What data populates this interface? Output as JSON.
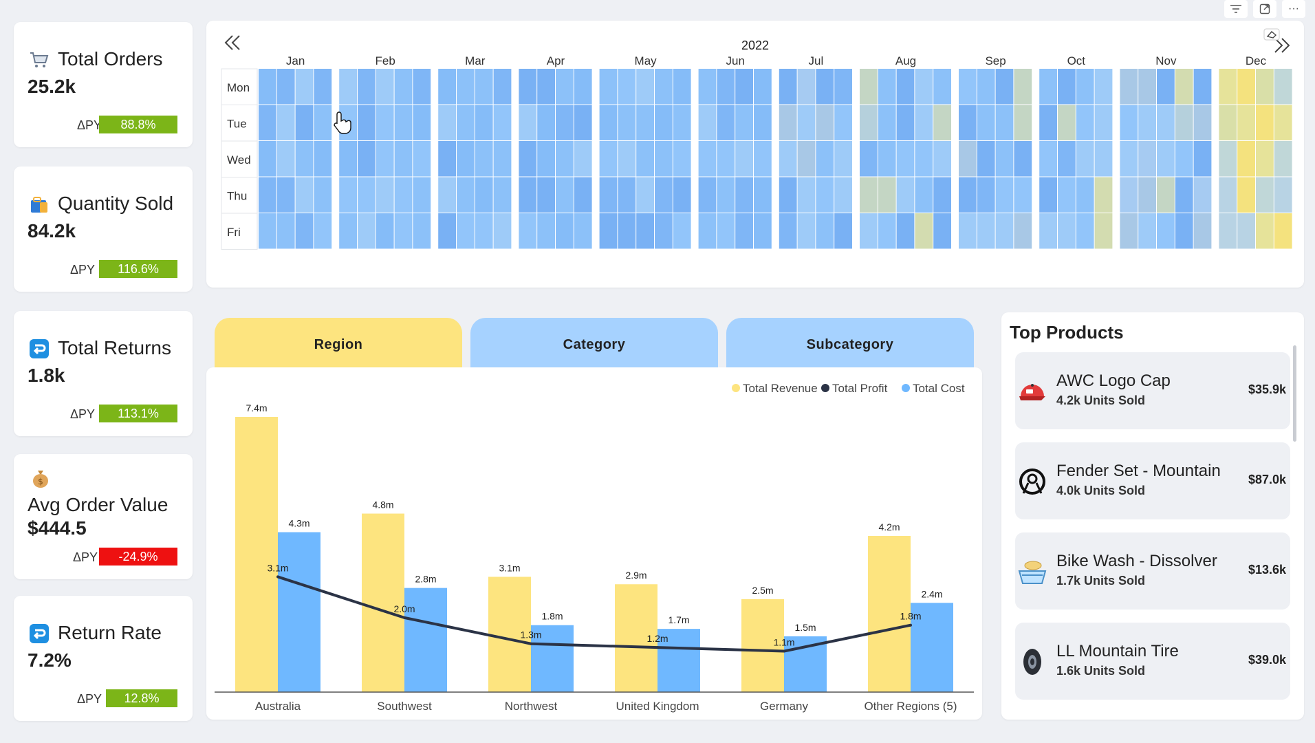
{
  "colors": {
    "revenue": "#fde47f",
    "profit": "#2b3346",
    "cost": "#6fb8ff",
    "pos": "#7cb518",
    "neg": "#ee1111",
    "tab_active": "#fde47f",
    "tab_inactive": "#a6d2ff"
  },
  "toolbar": {
    "filter_icon": "filter-icon",
    "expand_icon": "expand-icon",
    "more_icon": "more-icon"
  },
  "kpis": [
    {
      "title": "Total Orders",
      "value": "25.2k",
      "delta_label": "ΔPY",
      "delta": "88.8%",
      "trend": "pos",
      "icon": "cart-icon"
    },
    {
      "title": "Quantity Sold",
      "value": "84.2k",
      "delta_label": "ΔPY",
      "delta": "116.6%",
      "trend": "pos",
      "icon": "shopping-bag-icon"
    },
    {
      "title": "Total Returns",
      "value": "1.8k",
      "delta_label": "ΔPY",
      "delta": "113.1%",
      "trend": "pos",
      "icon": "return-icon"
    },
    {
      "title": "Avg Order Value",
      "value": "$444.5",
      "delta_label": "ΔPY",
      "delta": "-24.9%",
      "trend": "neg",
      "icon": "money-bag-icon"
    },
    {
      "title": "Return Rate",
      "value": "7.2%",
      "delta_label": "ΔPY",
      "delta": "12.8%",
      "trend": "pos",
      "icon": "return-icon"
    }
  ],
  "calendar": {
    "year": "2022",
    "prev_icon": "double-chevron-left-icon",
    "next_icon": "double-chevron-right-icon",
    "eraser_icon": "eraser-icon",
    "months": [
      "Jan",
      "Feb",
      "Mar",
      "Apr",
      "May",
      "Jun",
      "Jul",
      "Aug",
      "Sep",
      "Oct",
      "Nov",
      "Dec"
    ],
    "weeks_per_month": [
      4,
      5,
      4,
      4,
      5,
      4,
      4,
      5,
      4,
      4,
      5,
      4
    ],
    "days": [
      "Mon",
      "Tue",
      "Wed",
      "Thu",
      "Fri"
    ]
  },
  "tabs": [
    {
      "label": "Region",
      "active": true
    },
    {
      "label": "Category",
      "active": false
    },
    {
      "label": "Subcategory",
      "active": false
    }
  ],
  "chart_data": {
    "type": "bar",
    "categories": [
      "Australia",
      "Southwest",
      "Northwest",
      "United Kingdom",
      "Germany",
      "Other Regions (5)"
    ],
    "series": [
      {
        "name": "Total Revenue",
        "type": "bar",
        "values": [
          7.4,
          4.8,
          3.1,
          2.9,
          2.5,
          4.2
        ],
        "labels": [
          "7.4m",
          "4.8m",
          "3.1m",
          "2.9m",
          "2.5m",
          "4.2m"
        ]
      },
      {
        "name": "Total Profit",
        "type": "line",
        "values": [
          3.1,
          2.0,
          1.3,
          1.2,
          1.1,
          1.8
        ],
        "labels": [
          "3.1m",
          "2.0m",
          "1.3m",
          "1.2m",
          "1.1m",
          "1.8m"
        ]
      },
      {
        "name": "Total Cost",
        "type": "bar",
        "values": [
          4.3,
          2.8,
          1.8,
          1.7,
          1.5,
          2.4
        ],
        "labels": [
          "4.3m",
          "2.8m",
          "1.8m",
          "1.7m",
          "1.5m",
          "2.4m"
        ]
      }
    ],
    "ylim": [
      0,
      7.4
    ],
    "legend": "top-right",
    "grid": false
  },
  "top_products": {
    "title": "Top Products",
    "items": [
      {
        "name": "AWC Logo Cap",
        "units": "4.2k Units Sold",
        "value": "$35.9k",
        "icon": "cap-icon"
      },
      {
        "name": "Fender Set - Mountain",
        "units": "4.0k Units Sold",
        "value": "$87.0k",
        "icon": "fender-icon"
      },
      {
        "name": "Bike Wash - Dissolver",
        "units": "1.7k Units Sold",
        "value": "$13.6k",
        "icon": "bike-wash-icon"
      },
      {
        "name": "LL Mountain Tire",
        "units": "1.6k Units Sold",
        "value": "$39.0k",
        "icon": "tire-icon"
      }
    ]
  }
}
